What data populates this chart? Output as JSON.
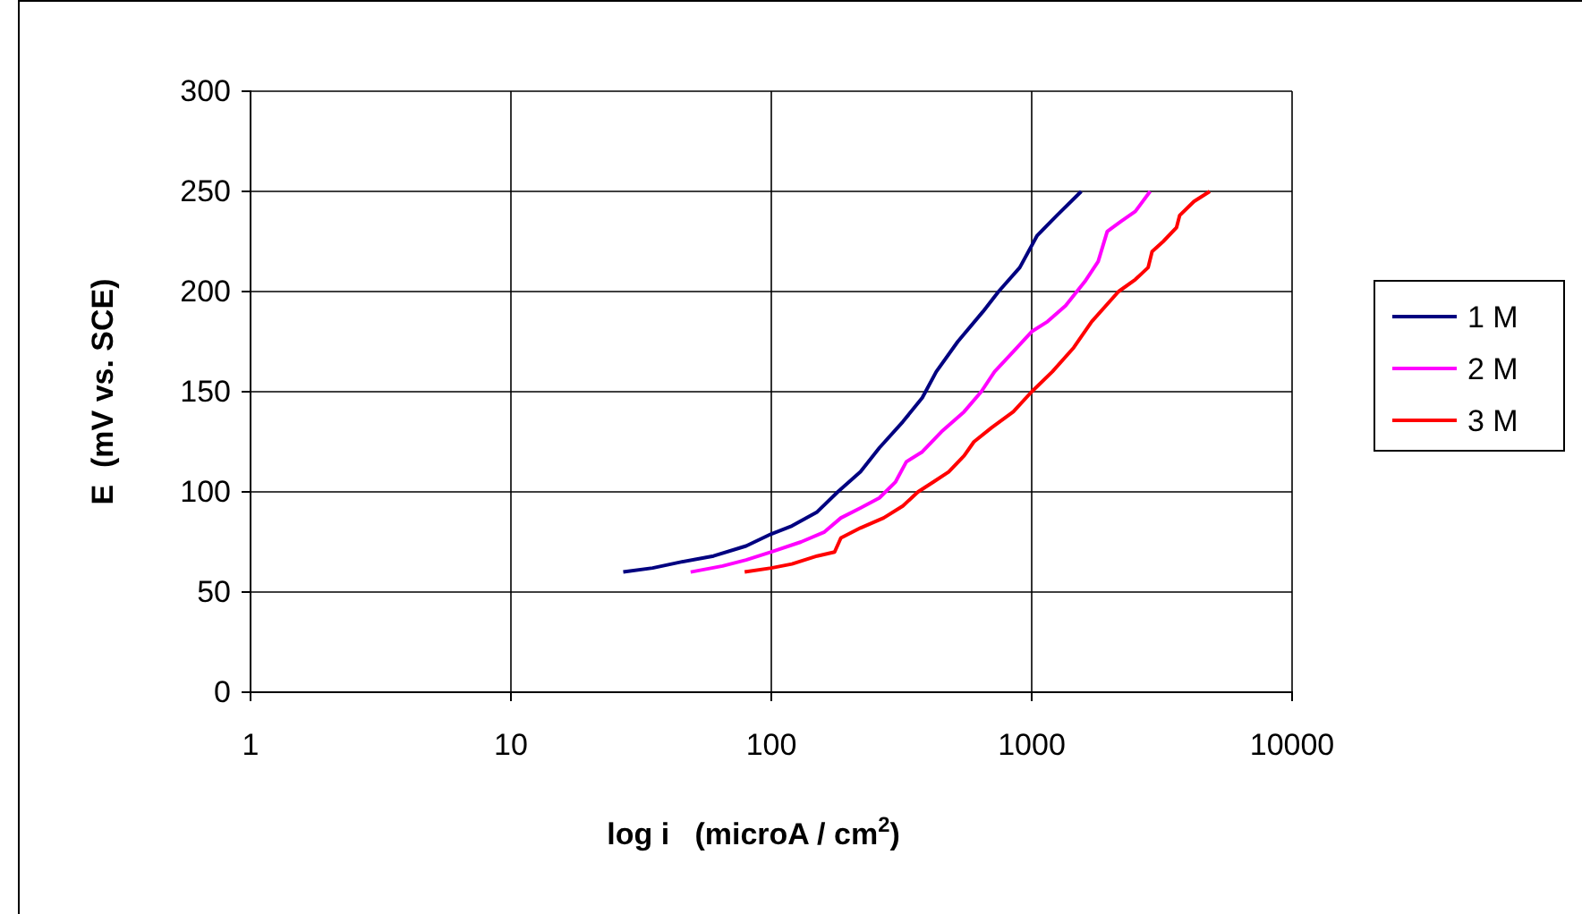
{
  "chart_data": {
    "type": "line",
    "xlabel": "log i   (microA / cm$^{2}$)",
    "ylabel": "E  (mV vs. SCE)",
    "log": "x",
    "grid": true,
    "legend": "right",
    "marker": "none",
    "line_style": "solid",
    "xlim": [
      1,
      10000
    ],
    "xticks": [
      1,
      10,
      100,
      1000,
      10000
    ],
    "ylim": [
      0,
      300
    ],
    "yticks": [
      0,
      50,
      100,
      150,
      200,
      250,
      300
    ],
    "series": [
      {
        "name": "1 M",
        "color": "#000080",
        "x": [
          27,
          35,
          45,
          60,
          80,
          100,
          120,
          150,
          180,
          220,
          260,
          320,
          380,
          430,
          520,
          650,
          746,
          900,
          1050,
          1250,
          1550
        ],
        "values": [
          60,
          62,
          65,
          68,
          73,
          79,
          83,
          90,
          100,
          110,
          122,
          135,
          147,
          160,
          175,
          190,
          200,
          212,
          228,
          238,
          250
        ]
      },
      {
        "name": "2 M",
        "color": "#ff00ff",
        "x": [
          49,
          65,
          80,
          100,
          130,
          160,
          185,
          220,
          260,
          300,
          330,
          380,
          450,
          550,
          640,
          720,
          850,
          1000,
          1150,
          1350,
          1600,
          1800,
          1950,
          2200,
          2500,
          2850
        ],
        "values": [
          60,
          63,
          66,
          70,
          75,
          80,
          87,
          92,
          97,
          105,
          115,
          120,
          130,
          140,
          150,
          160,
          170,
          180,
          185,
          193,
          205,
          215,
          230,
          235,
          240,
          250
        ]
      },
      {
        "name": "3 M",
        "color": "#ff0000",
        "x": [
          79,
          100,
          120,
          150,
          175,
          185,
          220,
          270,
          320,
          366,
          420,
          480,
          550,
          600,
          700,
          850,
          1000,
          1200,
          1450,
          1700,
          2155,
          2500,
          2800,
          2900,
          3200,
          3600,
          3700,
          4200,
          4830
        ],
        "values": [
          60,
          62,
          64,
          68,
          70,
          77,
          82,
          87,
          93,
          100,
          105,
          110,
          118,
          125,
          132,
          140,
          150,
          160,
          172,
          185,
          200,
          206,
          212,
          220,
          225,
          232,
          238,
          245,
          250
        ]
      }
    ]
  }
}
